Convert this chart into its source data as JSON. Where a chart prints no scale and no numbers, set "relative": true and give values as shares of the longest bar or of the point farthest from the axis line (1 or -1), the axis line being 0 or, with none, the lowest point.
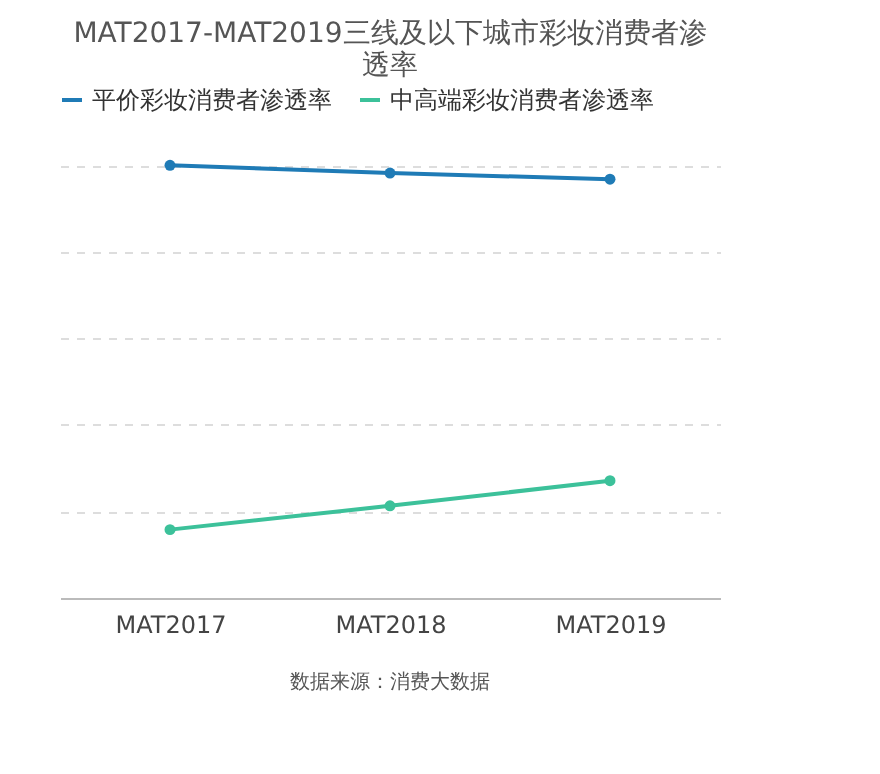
{
  "chart_data": {
    "type": "line",
    "title": "MAT2017-MAT2019三线及以下城市彩妆消费者渗透率",
    "categories": [
      "MAT2017",
      "MAT2018",
      "MAT2019"
    ],
    "relative": true,
    "series": [
      {
        "name": "平价彩妆消费者渗透率",
        "color": "#1f7bb6",
        "values": [
          1,
          0.982,
          0.968
        ]
      },
      {
        "name": "中高端彩妆消费者渗透率",
        "color": "#3cc19a",
        "values": [
          0.158,
          0.213,
          0.271
        ]
      }
    ],
    "marker": "circle",
    "line_style": "solid",
    "grid": "y",
    "legend": "top",
    "annotations": [
      "数据来源：消费大数据"
    ]
  }
}
